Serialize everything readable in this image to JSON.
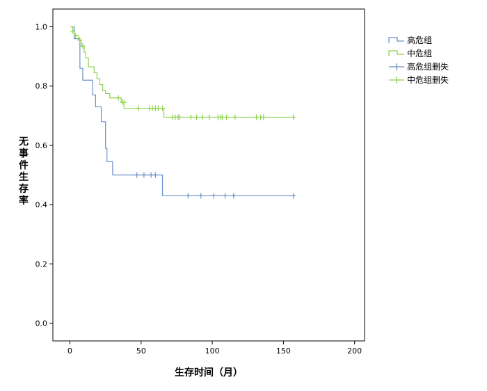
{
  "chart_data": {
    "type": "line",
    "subtype": "kaplan-meier",
    "xlabel": "生存时间（月）",
    "ylabel": "无事件生存率",
    "xlim": [
      -12,
      207
    ],
    "ylim": [
      -0.06,
      1.06
    ],
    "xticks": [
      0,
      50,
      100,
      150,
      200
    ],
    "yticks": [
      0.0,
      0.2,
      0.4,
      0.6,
      0.8,
      1.0
    ],
    "yticklabels": [
      "0.0",
      "0.2",
      "0.4",
      "0.6",
      "0.8",
      "1.0"
    ],
    "grid": false,
    "legend_position": "top-right",
    "legend": [
      {
        "label": "高危组",
        "kind": "line",
        "color": "#6b8fc7"
      },
      {
        "label": "中危组",
        "kind": "line",
        "color": "#8fd14f"
      },
      {
        "label": "高危组删失",
        "kind": "censor",
        "color": "#6b8fc7"
      },
      {
        "label": "中危组删失",
        "kind": "censor",
        "color": "#8fd14f"
      }
    ],
    "series": [
      {
        "name": "高危组",
        "color": "#6b8fc7",
        "steps": [
          [
            0,
            1.0
          ],
          [
            3,
            0.96
          ],
          [
            7,
            0.86
          ],
          [
            9,
            0.82
          ],
          [
            16,
            0.77
          ],
          [
            18,
            0.73
          ],
          [
            22,
            0.68
          ],
          [
            25,
            0.59
          ],
          [
            26,
            0.545
          ],
          [
            30,
            0.5
          ],
          [
            65,
            0.43
          ],
          [
            157,
            0.43
          ]
        ],
        "censored": [
          [
            47,
            0.5
          ],
          [
            52,
            0.5
          ],
          [
            57,
            0.5
          ],
          [
            60,
            0.5
          ],
          [
            83,
            0.43
          ],
          [
            92,
            0.43
          ],
          [
            101,
            0.43
          ],
          [
            109,
            0.43
          ],
          [
            115,
            0.43
          ],
          [
            157,
            0.43
          ]
        ]
      },
      {
        "name": "中危组",
        "color": "#8fd14f",
        "steps": [
          [
            0,
            1.0
          ],
          [
            2,
            0.985
          ],
          [
            3,
            0.97
          ],
          [
            6,
            0.955
          ],
          [
            8,
            0.935
          ],
          [
            10,
            0.915
          ],
          [
            11,
            0.895
          ],
          [
            13,
            0.865
          ],
          [
            17,
            0.845
          ],
          [
            19,
            0.825
          ],
          [
            21,
            0.805
          ],
          [
            23,
            0.785
          ],
          [
            25,
            0.775
          ],
          [
            28,
            0.76
          ],
          [
            36,
            0.745
          ],
          [
            38,
            0.725
          ],
          [
            66,
            0.695
          ],
          [
            157,
            0.695
          ]
        ],
        "censored": [
          [
            2,
            0.985
          ],
          [
            4,
            0.97
          ],
          [
            7,
            0.955
          ],
          [
            9,
            0.935
          ],
          [
            34,
            0.76
          ],
          [
            37,
            0.745
          ],
          [
            38,
            0.745
          ],
          [
            48,
            0.725
          ],
          [
            56,
            0.725
          ],
          [
            58,
            0.725
          ],
          [
            60,
            0.725
          ],
          [
            62,
            0.725
          ],
          [
            65,
            0.725
          ],
          [
            72,
            0.695
          ],
          [
            74,
            0.695
          ],
          [
            76,
            0.695
          ],
          [
            77,
            0.695
          ],
          [
            85,
            0.695
          ],
          [
            89,
            0.695
          ],
          [
            93,
            0.695
          ],
          [
            98,
            0.695
          ],
          [
            104,
            0.695
          ],
          [
            106,
            0.695
          ],
          [
            107,
            0.695
          ],
          [
            110,
            0.695
          ],
          [
            116,
            0.695
          ],
          [
            131,
            0.695
          ],
          [
            134,
            0.695
          ],
          [
            136,
            0.695
          ],
          [
            157,
            0.695
          ]
        ]
      }
    ]
  }
}
